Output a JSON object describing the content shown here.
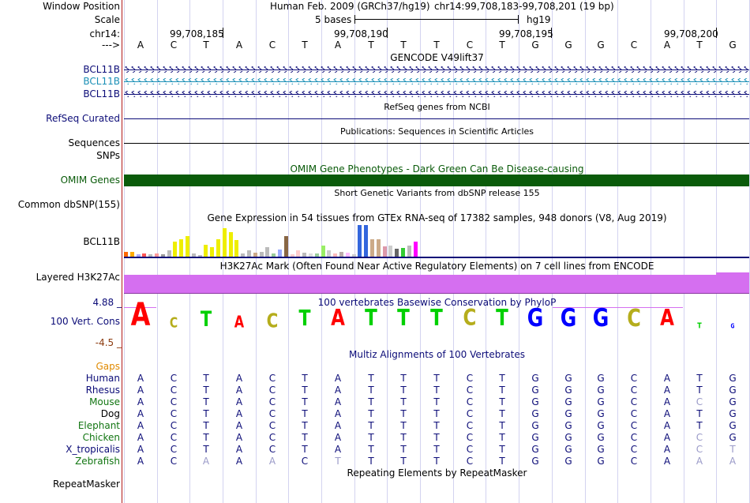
{
  "window_position": {
    "label": "Window Position",
    "assembly": "Human Feb. 2009 (GRCh37/hg19)",
    "region": "chr14:99,708,183-99,708,201 (19 bp)"
  },
  "scale": {
    "label": "Scale",
    "text": "5 bases",
    "db": "hg19"
  },
  "ruler": {
    "label": "chr14:",
    "positions": [
      "99,708,185",
      "99,708,190",
      "99,708,195",
      "99,708,200"
    ],
    "arrow_label": "--->",
    "bases": [
      "A",
      "C",
      "T",
      "A",
      "C",
      "T",
      "A",
      "T",
      "T",
      "T",
      "C",
      "T",
      "G",
      "G",
      "G",
      "C",
      "A",
      "T",
      "G"
    ]
  },
  "tracks": {
    "gencode": {
      "title": "GENCODE V49lift37",
      "items": [
        "BCL11B",
        "BCL11B",
        "BCL11B"
      ],
      "colors": [
        "#0c0c78",
        "#1a8fb6",
        "#0c0c78"
      ]
    },
    "refseq": {
      "title": "RefSeq genes from NCBI",
      "label": "RefSeq Curated",
      "color": "#0c0c78"
    },
    "publications": {
      "title": "Publications: Sequences in Scientific Articles",
      "labels": [
        "Sequences",
        "SNPs"
      ]
    },
    "omim": {
      "title": "OMIM Gene Phenotypes - Dark Green Can Be Disease-causing",
      "label": "OMIM Genes",
      "color": "#0a5b0a",
      "title_color": "#0a5b0a"
    },
    "dbsnp": {
      "title": "Short Genetic Variants from dbSNP release 155",
      "label": "Common dbSNP(155)"
    },
    "gtex": {
      "title": "Gene Expression in 54 tissues from GTEx RNA-seq of 17382 samples, 948 donors (V8, Aug 2019)",
      "label": "BCL11B"
    },
    "h3k27ac": {
      "title": "H3K27Ac Mark (Often Found Near Active Regulatory Elements) on 7 cell lines from ENCODE",
      "label": "Layered H3K27Ac",
      "color": "#d56ff0"
    },
    "conservation": {
      "title": "100 vertebrates Basewise Conservation by PhyloP",
      "label": "100 Vert. Cons",
      "ymax": "4.88 _",
      "ymin": "-4.5 _",
      "scores": [
        4.6,
        2.0,
        3.0,
        2.3,
        2.9,
        3.2,
        3.3,
        3.3,
        3.3,
        3.3,
        3.3,
        3.3,
        3.6,
        3.6,
        3.6,
        3.4,
        3.3,
        1.2,
        0.8
      ]
    },
    "multiz": {
      "title": "Multiz Alignments of 100 Vertebrates",
      "gaps_label": "Gaps",
      "species": [
        {
          "name": "Human",
          "seq": "ACTACTATTTCTGGGCATG",
          "dim": []
        },
        {
          "name": "Rhesus",
          "seq": "ACTACTATTTCTGGGCATG",
          "dim": []
        },
        {
          "name": "Mouse",
          "seq": "ACTACTATTTCTGGGCACG",
          "dim": [
            17
          ]
        },
        {
          "name": "Dog",
          "seq": "ACTACTATTTCTGGGCATG",
          "dim": []
        },
        {
          "name": "Elephant",
          "seq": "ACTACTATTTCTGGGCATG",
          "dim": []
        },
        {
          "name": "Chicken",
          "seq": "ACTACTATTTCTGGGCACG",
          "dim": [
            17
          ]
        },
        {
          "name": "X_tropicalis",
          "seq": "ACTACTATTTCTGGGCACT",
          "dim": [
            17,
            18
          ]
        },
        {
          "name": "Zebrafish",
          "seq": "ACAAACTTTTCTGGGCAAA",
          "dim": [
            2,
            4,
            6,
            17,
            18
          ]
        }
      ],
      "species_colors": {
        "Human": "#0c0c78",
        "Rhesus": "#0c0c78",
        "Mouse": "#127612",
        "Dog": "#000000",
        "Elephant": "#127612",
        "Chicken": "#127612",
        "X_tropicalis": "#0c0c78",
        "Zebrafish": "#127612"
      }
    },
    "repeatmasker": {
      "title": "Repeating Elements by RepeatMasker",
      "label": "RepeatMasker"
    }
  },
  "colors": {
    "navy": "#0c0c78",
    "base_A": "#ff0000",
    "base_C": "#b5ad1c",
    "base_G": "#0000ff",
    "base_T": "#00d000"
  }
}
